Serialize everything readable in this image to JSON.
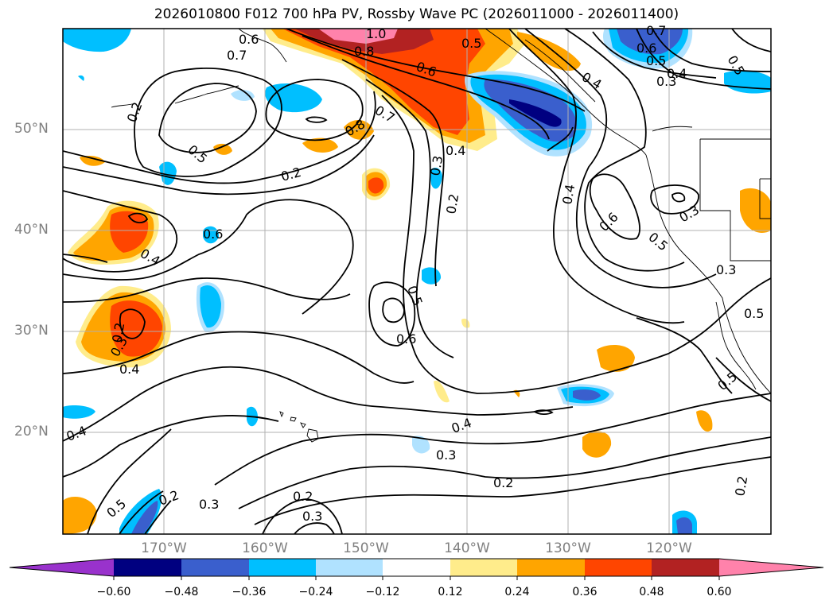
{
  "title": "2026010800 F012 700 hPa PV, Rossby Wave PC (2026011000 - 2026011400)",
  "map": {
    "latitude_labels": [
      "50°N",
      "40°N",
      "30°N",
      "20°N"
    ],
    "longitude_labels": [
      "170°W",
      "160°W",
      "150°W",
      "140°W",
      "130°W",
      "120°W"
    ],
    "contour_labels": [
      "1.0",
      "0.8",
      "0.8",
      "0.7",
      "0.7",
      "0.6",
      "0.6",
      "0.5",
      "0.5",
      "0.4",
      "0.4",
      "0.3",
      "0.3",
      "0.2",
      "0.2",
      "0.4",
      "0.2",
      "0.3",
      "0.6",
      "0.5",
      "0.4",
      "0.5",
      "0.3",
      "0.6",
      "0.4",
      "0.2",
      "0.4",
      "0.2",
      "0.3",
      "0.2",
      "0.4",
      "0.3",
      "0.2",
      "0.3",
      "0.5",
      "0.2",
      "0.5",
      "0.6",
      "0.5",
      "0.7",
      "0.6",
      "0.5",
      "0.4",
      "0.3",
      "0.5"
    ]
  },
  "colorbar": {
    "ticks": [
      "−0.60",
      "−0.48",
      "−0.36",
      "−0.24",
      "−0.12",
      "0.12",
      "0.24",
      "0.36",
      "0.48",
      "0.60"
    ],
    "colors": [
      "#9932cc",
      "#000080",
      "#3a5fcd",
      "#00bfff",
      "#b0e2ff",
      "#ffffff",
      "#ffec8b",
      "#ffa500",
      "#ff4500",
      "#b22222",
      "#ff82ab"
    ]
  }
}
